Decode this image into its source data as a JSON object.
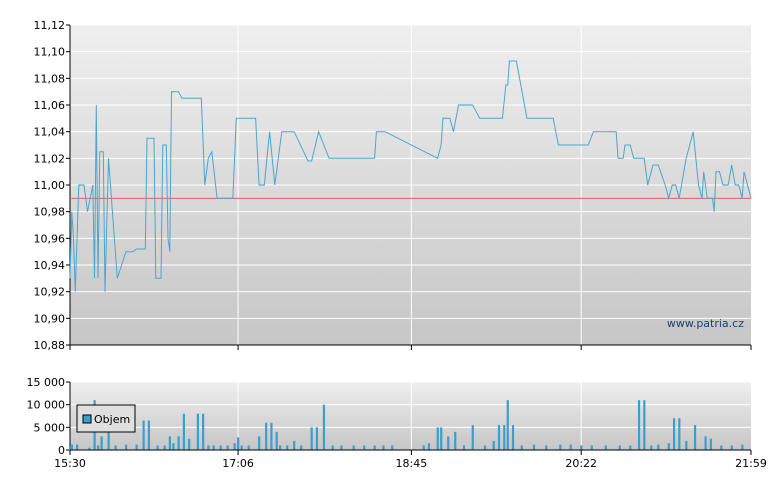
{
  "watermark": "www.patria.cz",
  "legend": {
    "volume_label": "Objem"
  },
  "colors": {
    "price_line": "#4aa6cf",
    "reference_line": "#e06060",
    "volume_bar": "#3d9dcc",
    "grid": "#ffffff",
    "plot_top": "#efefef",
    "plot_bottom": "#c8c8c8"
  },
  "chart_data": [
    {
      "type": "line",
      "title": "",
      "xlabel": "",
      "ylabel": "",
      "ylim": [
        10.88,
        11.12
      ],
      "yticks": [
        "10,88",
        "10,90",
        "10,92",
        "10,94",
        "10,96",
        "10,98",
        "11,00",
        "11,02",
        "11,04",
        "11,06",
        "11,08",
        "11,10",
        "11,12"
      ],
      "xlim": [
        "15:30",
        "21:59"
      ],
      "xticks": [
        "15:30",
        "17:06",
        "18:45",
        "20:22",
        "21:59"
      ],
      "reference_value": 10.99,
      "series": [
        {
          "values": [
            [
              "15:30",
              10.93
            ],
            [
              "15:31",
              10.98
            ],
            [
              "15:32",
              10.96
            ],
            [
              "15:33",
              10.92
            ],
            [
              "15:35",
              11.0
            ],
            [
              "15:38",
              11.0
            ],
            [
              "15:40",
              10.98
            ],
            [
              "15:43",
              11.0
            ],
            [
              "15:44",
              10.93
            ],
            [
              "15:45",
              11.06
            ],
            [
              "15:46",
              10.93
            ],
            [
              "15:47",
              11.025
            ],
            [
              "15:49",
              11.025
            ],
            [
              "15:50",
              10.92
            ],
            [
              "15:52",
              11.02
            ],
            [
              "15:57",
              10.93
            ],
            [
              "16:02",
              10.95
            ],
            [
              "16:06",
              10.95
            ],
            [
              "16:08",
              10.952
            ],
            [
              "16:13",
              10.952
            ],
            [
              "16:14",
              11.035
            ],
            [
              "16:18",
              11.035
            ],
            [
              "16:19",
              10.93
            ],
            [
              "16:22",
              10.93
            ],
            [
              "16:23",
              11.03
            ],
            [
              "16:25",
              11.03
            ],
            [
              "16:26",
              10.96
            ],
            [
              "16:27",
              10.95
            ],
            [
              "16:28",
              11.07
            ],
            [
              "16:32",
              11.07
            ],
            [
              "16:34",
              11.065
            ],
            [
              "16:45",
              11.065
            ],
            [
              "16:47",
              11.0
            ],
            [
              "16:49",
              11.02
            ],
            [
              "16:51",
              11.025
            ],
            [
              "16:54",
              10.99
            ],
            [
              "17:00",
              10.99
            ],
            [
              "17:03",
              10.99
            ],
            [
              "17:05",
              11.05
            ],
            [
              "17:16",
              11.05
            ],
            [
              "17:18",
              11.0
            ],
            [
              "17:21",
              11.0
            ],
            [
              "17:24",
              11.04
            ],
            [
              "17:27",
              11.0
            ],
            [
              "17:31",
              11.04
            ],
            [
              "17:38",
              11.04
            ],
            [
              "17:46",
              11.018
            ],
            [
              "17:48",
              11.018
            ],
            [
              "17:52",
              11.04
            ],
            [
              "17:58",
              11.02
            ],
            [
              "18:17",
              11.02
            ],
            [
              "18:24",
              11.02
            ],
            [
              "18:25",
              11.04
            ],
            [
              "18:30",
              11.04
            ],
            [
              "19:00",
              11.02
            ],
            [
              "19:02",
              11.03
            ],
            [
              "19:03",
              11.05
            ],
            [
              "19:07",
              11.05
            ],
            [
              "19:09",
              11.04
            ],
            [
              "19:12",
              11.06
            ],
            [
              "19:20",
              11.06
            ],
            [
              "19:24",
              11.05
            ],
            [
              "19:37",
              11.05
            ],
            [
              "19:39",
              11.075
            ],
            [
              "19:40",
              11.075
            ],
            [
              "19:41",
              11.093
            ],
            [
              "19:45",
              11.093
            ],
            [
              "19:51",
              11.05
            ],
            [
              "20:06",
              11.05
            ],
            [
              "20:09",
              11.03
            ],
            [
              "20:25",
              11.03
            ],
            [
              "20:26",
              11.03
            ],
            [
              "20:29",
              11.04
            ],
            [
              "20:42",
              11.04
            ],
            [
              "20:43",
              11.02
            ],
            [
              "20:46",
              11.02
            ],
            [
              "20:47",
              11.03
            ],
            [
              "20:50",
              11.03
            ],
            [
              "20:52",
              11.02
            ],
            [
              "20:58",
              11.02
            ],
            [
              "21:00",
              11.0
            ],
            [
              "21:03",
              11.015
            ],
            [
              "21:06",
              11.015
            ],
            [
              "21:10",
              11.0
            ],
            [
              "21:12",
              10.99
            ],
            [
              "21:14",
              11.0
            ],
            [
              "21:16",
              11.0
            ],
            [
              "21:18",
              10.99
            ],
            [
              "21:22",
              11.02
            ],
            [
              "21:26",
              11.04
            ],
            [
              "21:29",
              11.0
            ],
            [
              "21:31",
              10.99
            ],
            [
              "21:32",
              11.01
            ],
            [
              "21:34",
              10.99
            ],
            [
              "21:37",
              10.99
            ],
            [
              "21:38",
              10.98
            ],
            [
              "21:39",
              11.01
            ],
            [
              "21:41",
              11.01
            ],
            [
              "21:43",
              11.0
            ],
            [
              "21:46",
              11.0
            ],
            [
              "21:48",
              11.015
            ],
            [
              "21:50",
              11.0
            ],
            [
              "21:52",
              11.0
            ],
            [
              "21:54",
              10.99
            ],
            [
              "21:55",
              11.01
            ],
            [
              "21:57",
              11.0
            ],
            [
              "21:59",
              10.99
            ]
          ]
        }
      ]
    },
    {
      "type": "bar",
      "title": "",
      "xlabel": "",
      "ylabel": "",
      "ylim": [
        0,
        15000
      ],
      "yticks": [
        "0",
        "5 000",
        "10 000",
        "15 000"
      ],
      "xlim": [
        "15:30",
        "21:59"
      ],
      "xticks": [
        "15:30",
        "17:06",
        "18:45",
        "20:22",
        "21:59"
      ],
      "series": [
        {
          "name": "Objem",
          "values": [
            [
              "15:30",
              1000
            ],
            [
              "15:31",
              1200
            ],
            [
              "15:34",
              1200
            ],
            [
              "15:41",
              500
            ],
            [
              "15:44",
              11000
            ],
            [
              "15:46",
              1000
            ],
            [
              "15:48",
              3000
            ],
            [
              "15:52",
              8500
            ],
            [
              "15:56",
              1000
            ],
            [
              "16:02",
              1200
            ],
            [
              "16:08",
              1200
            ],
            [
              "16:12",
              6500
            ],
            [
              "16:15",
              6500
            ],
            [
              "16:20",
              1000
            ],
            [
              "16:24",
              1000
            ],
            [
              "16:27",
              3000
            ],
            [
              "16:29",
              1500
            ],
            [
              "16:32",
              3000
            ],
            [
              "16:35",
              8000
            ],
            [
              "16:38",
              2500
            ],
            [
              "16:43",
              8000
            ],
            [
              "16:46",
              8000
            ],
            [
              "16:49",
              1000
            ],
            [
              "16:52",
              1000
            ],
            [
              "16:56",
              1000
            ],
            [
              "17:00",
              1000
            ],
            [
              "17:04",
              1500
            ],
            [
              "17:06",
              2800
            ],
            [
              "17:08",
              1000
            ],
            [
              "17:12",
              1000
            ],
            [
              "17:18",
              3000
            ],
            [
              "17:22",
              6000
            ],
            [
              "17:25",
              6000
            ],
            [
              "17:28",
              4000
            ],
            [
              "17:30",
              1000
            ],
            [
              "17:34",
              1000
            ],
            [
              "17:38",
              2000
            ],
            [
              "17:42",
              1000
            ],
            [
              "17:48",
              5000
            ],
            [
              "17:51",
              5000
            ],
            [
              "17:55",
              10000
            ],
            [
              "18:00",
              1000
            ],
            [
              "18:05",
              1000
            ],
            [
              "18:12",
              1000
            ],
            [
              "18:18",
              1000
            ],
            [
              "18:24",
              1000
            ],
            [
              "18:29",
              1000
            ],
            [
              "18:34",
              1000
            ],
            [
              "18:52",
              1000
            ],
            [
              "18:55",
              1500
            ],
            [
              "19:00",
              5000
            ],
            [
              "19:02",
              5000
            ],
            [
              "19:06",
              3000
            ],
            [
              "19:10",
              4000
            ],
            [
              "19:15",
              1000
            ],
            [
              "19:20",
              5500
            ],
            [
              "19:27",
              1000
            ],
            [
              "19:32",
              2000
            ],
            [
              "19:35",
              5500
            ],
            [
              "19:38",
              5500
            ],
            [
              "19:40",
              11000
            ],
            [
              "19:43",
              5500
            ],
            [
              "19:48",
              1000
            ],
            [
              "19:55",
              1200
            ],
            [
              "20:02",
              1000
            ],
            [
              "20:10",
              1200
            ],
            [
              "20:16",
              1200
            ],
            [
              "20:22",
              1000
            ],
            [
              "20:28",
              1000
            ],
            [
              "20:36",
              1000
            ],
            [
              "20:44",
              1000
            ],
            [
              "20:50",
              1000
            ],
            [
              "20:55",
              11000
            ],
            [
              "20:58",
              11000
            ],
            [
              "21:02",
              1000
            ],
            [
              "21:06",
              1200
            ],
            [
              "21:12",
              1500
            ],
            [
              "21:15",
              7000
            ],
            [
              "21:18",
              7000
            ],
            [
              "21:22",
              2000
            ],
            [
              "21:27",
              5500
            ],
            [
              "21:33",
              3000
            ],
            [
              "21:36",
              2500
            ],
            [
              "21:42",
              1000
            ],
            [
              "21:48",
              1000
            ],
            [
              "21:54",
              1200
            ]
          ]
        }
      ]
    }
  ]
}
